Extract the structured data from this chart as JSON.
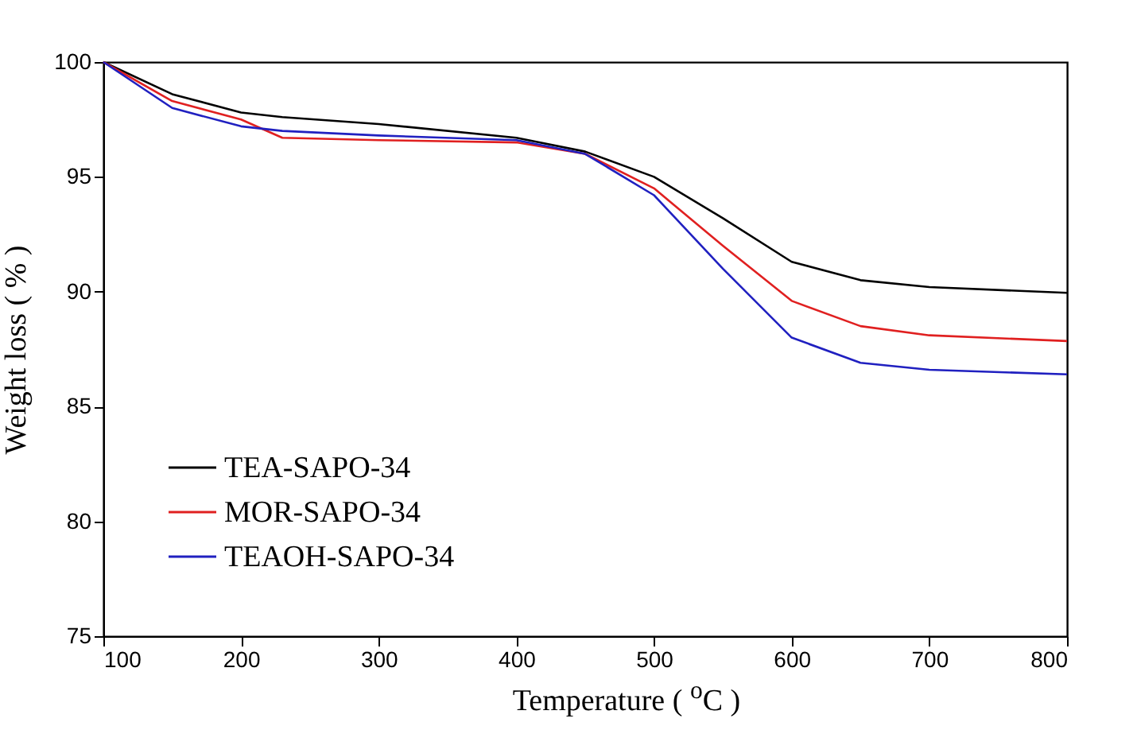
{
  "chart_data": {
    "type": "line",
    "xlabel": "Temperature ( $^{o}$C )",
    "ylabel": "Weight loss ( % )",
    "xlim": [
      100,
      800
    ],
    "xticks": [
      100,
      200,
      300,
      400,
      500,
      600,
      700,
      800
    ],
    "ylim": [
      75,
      100
    ],
    "yticks": [
      75,
      80,
      85,
      90,
      95,
      100
    ],
    "grid": false,
    "legend": "bottom left",
    "marker": "none",
    "line_style": "solid",
    "x": [
      100,
      150,
      200,
      230,
      300,
      400,
      450,
      500,
      550,
      600,
      650,
      700,
      800
    ],
    "series": [
      {
        "name": "TEA-SAPO-34",
        "color": "#000000",
        "values": [
          100,
          98.6,
          97.8,
          97.6,
          97.3,
          96.7,
          96.1,
          95.0,
          93.2,
          91.3,
          90.5,
          90.2,
          89.95
        ]
      },
      {
        "name": "MOR-SAPO-34",
        "color": "#e02020",
        "values": [
          100,
          98.3,
          97.5,
          96.7,
          96.6,
          96.5,
          96.0,
          94.5,
          92.0,
          89.6,
          88.5,
          88.1,
          87.85
        ]
      },
      {
        "name": "TEAOH-SAPO-34",
        "color": "#2020c0",
        "values": [
          100,
          98.0,
          97.2,
          97.0,
          96.8,
          96.6,
          96.0,
          94.2,
          91.0,
          88.0,
          86.9,
          86.6,
          86.4
        ]
      }
    ]
  }
}
